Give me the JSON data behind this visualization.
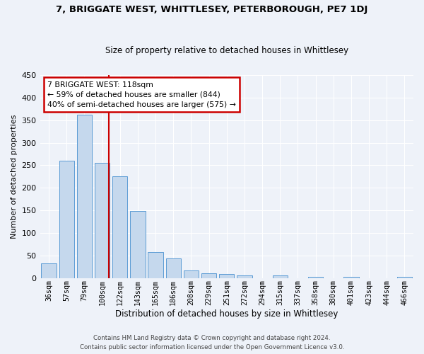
{
  "title": "7, BRIGGATE WEST, WHITTLESEY, PETERBOROUGH, PE7 1DJ",
  "subtitle": "Size of property relative to detached houses in Whittlesey",
  "xlabel": "Distribution of detached houses by size in Whittlesey",
  "ylabel": "Number of detached properties",
  "categories": [
    "36sqm",
    "57sqm",
    "79sqm",
    "100sqm",
    "122sqm",
    "143sqm",
    "165sqm",
    "186sqm",
    "208sqm",
    "229sqm",
    "251sqm",
    "272sqm",
    "294sqm",
    "315sqm",
    "337sqm",
    "358sqm",
    "380sqm",
    "401sqm",
    "423sqm",
    "444sqm",
    "466sqm"
  ],
  "values": [
    32,
    260,
    362,
    255,
    225,
    148,
    57,
    43,
    17,
    11,
    9,
    6,
    0,
    6,
    0,
    3,
    0,
    3,
    0,
    0,
    3
  ],
  "bar_color": "#c5d8ed",
  "bar_edge_color": "#5b9bd5",
  "annotation_text": "7 BRIGGATE WEST: 118sqm\n← 59% of detached houses are smaller (844)\n40% of semi-detached houses are larger (575) →",
  "annotation_box_color": "#ffffff",
  "annotation_box_edge_color": "#cc0000",
  "vline_color": "#cc0000",
  "vline_x": 3.38,
  "background_color": "#eef2f9",
  "grid_color": "#ffffff",
  "footer_line1": "Contains HM Land Registry data © Crown copyright and database right 2024.",
  "footer_line2": "Contains public sector information licensed under the Open Government Licence v3.0.",
  "ylim": [
    0,
    450
  ],
  "yticks": [
    0,
    50,
    100,
    150,
    200,
    250,
    300,
    350,
    400,
    450
  ]
}
